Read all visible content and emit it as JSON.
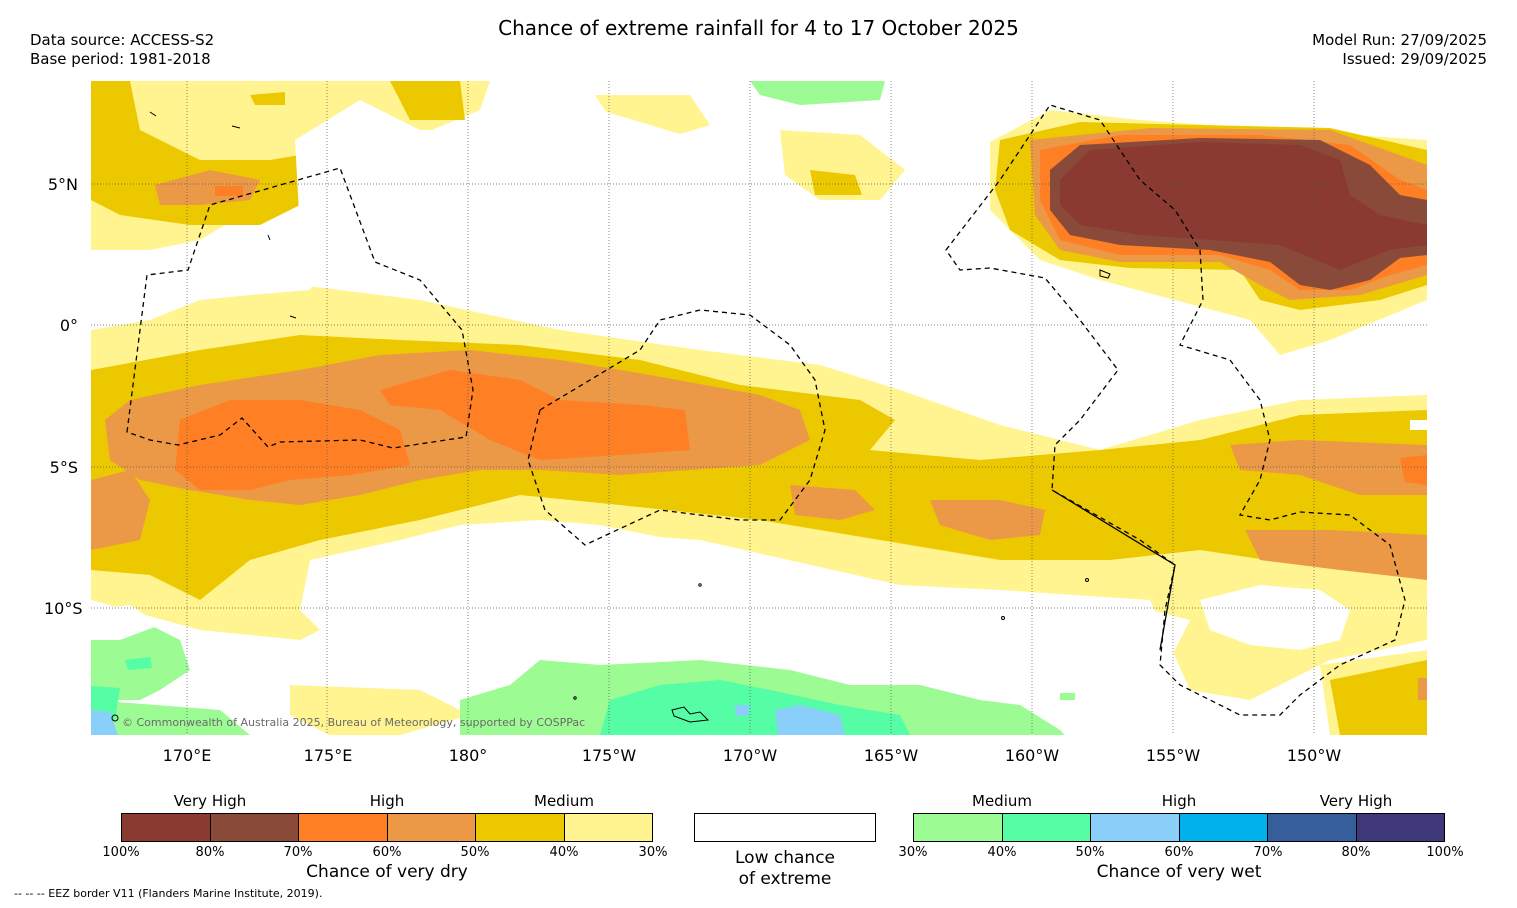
{
  "header": {
    "title": "Chance of extreme rainfall for 4 to 17 October 2025",
    "data_source": "Data source: ACCESS-S2",
    "base_period": "Base period: 1981-2018",
    "model_run": "Model Run: 27/09/2025",
    "issued": "Issued: 29/09/2025"
  },
  "map": {
    "lon_labels": [
      "170°E",
      "175°E",
      "180°",
      "175°W",
      "170°W",
      "165°W",
      "160°W",
      "155°W",
      "150°W"
    ],
    "lat_labels": [
      "5°N",
      "0°",
      "5°S",
      "10°S"
    ],
    "credit": "© Commonwealth of Australia 2025, Bureau of Meteorology, supported by COSPPac"
  },
  "legend": {
    "dry": {
      "groups": [
        "Very High",
        "High",
        "Medium"
      ],
      "colors": [
        "#8b3a32",
        "#8a4a3a",
        "#ff7f24",
        "#eb9847",
        "#ecc800",
        "#fff48f"
      ],
      "ticks": [
        "100%",
        "80%",
        "70%",
        "60%",
        "50%",
        "40%",
        "30%"
      ],
      "caption": "Chance of very dry"
    },
    "none": {
      "caption_line1": "Low chance",
      "caption_line2": "of extreme",
      "color": "#ffffff"
    },
    "wet": {
      "groups": [
        "Medium",
        "High",
        "Very High"
      ],
      "colors": [
        "#9cfc93",
        "#55fda4",
        "#8acff9",
        "#00b1eb",
        "#355e9b",
        "#3f3879"
      ],
      "ticks": [
        "30%",
        "40%",
        "50%",
        "60%",
        "70%",
        "80%",
        "100%"
      ],
      "caption": "Chance of very wet"
    }
  },
  "footnote": "--  --  -- EEZ border V11 (Flanders Marine Institute, 2019)."
}
